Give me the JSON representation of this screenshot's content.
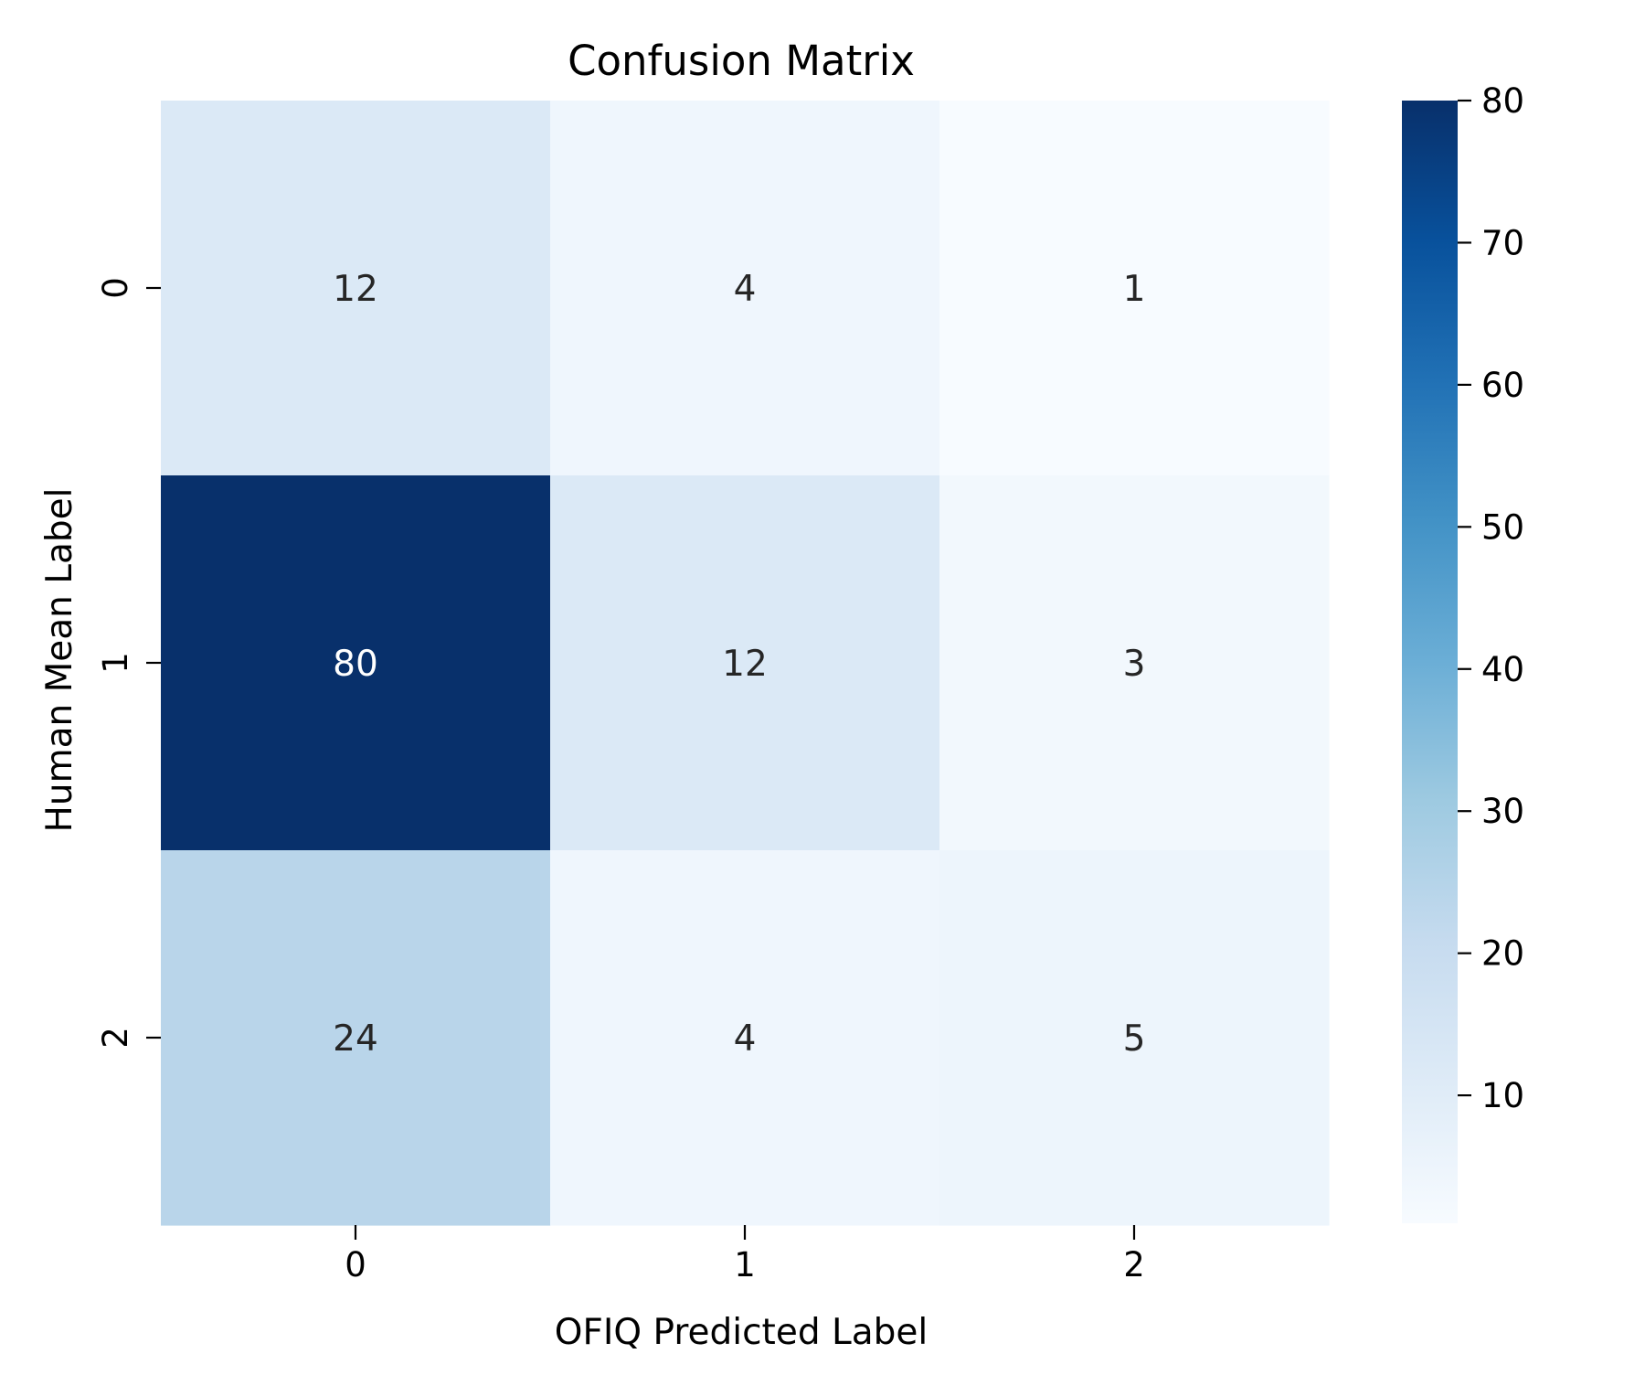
{
  "chart_data": {
    "type": "heatmap",
    "title": "Confusion Matrix",
    "xlabel": "OFIQ Predicted Label",
    "ylabel": "Human Mean Label",
    "x_categories": [
      "0",
      "1",
      "2"
    ],
    "y_categories": [
      "0",
      "1",
      "2"
    ],
    "values": [
      [
        12,
        4,
        1
      ],
      [
        80,
        12,
        3
      ],
      [
        24,
        4,
        5
      ]
    ],
    "colormap": "Blues",
    "vmin": 1,
    "vmax": 80,
    "colorbar_ticks": [
      10,
      20,
      30,
      40,
      50,
      60,
      70,
      80
    ],
    "annotation_dark_color": "#262626",
    "annotation_light_color": "#ffffff"
  }
}
